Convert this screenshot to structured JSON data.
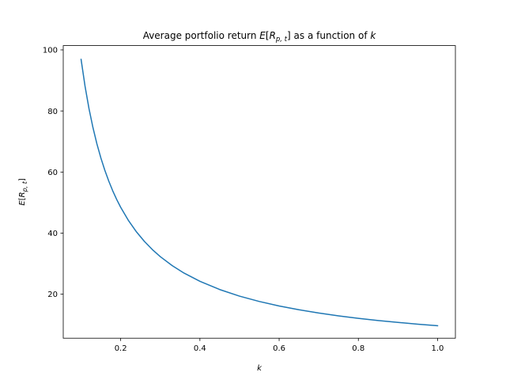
{
  "chart_data": {
    "type": "line",
    "title": {
      "prefix": "Average portfolio return ",
      "E": "E",
      "bracket_open": "[",
      "R": "R",
      "sub": "p, t",
      "bracket_close": "]",
      "middle": " as a function of ",
      "k": "k"
    },
    "xlabel": "k",
    "ylabel": {
      "E": "E",
      "bracket_open": "[",
      "R": "R",
      "sub": "p, t",
      "bracket_close": "]"
    },
    "xlim": [
      0.055,
      1.045
    ],
    "ylim": [
      5.6,
      101.4
    ],
    "xticks": [
      0.2,
      0.4,
      0.6,
      0.8,
      1.0
    ],
    "xtick_labels": [
      "0.2",
      "0.4",
      "0.6",
      "0.8",
      "1.0"
    ],
    "yticks": [
      20,
      40,
      60,
      80,
      100
    ],
    "ytick_labels": [
      "20",
      "40",
      "60",
      "80",
      "100"
    ],
    "grid": false,
    "series": [
      {
        "color": "#1f77b4",
        "x": [
          0.1,
          0.11,
          0.12,
          0.13,
          0.14,
          0.15,
          0.16,
          0.17,
          0.18,
          0.19,
          0.2,
          0.22,
          0.24,
          0.26,
          0.28,
          0.3,
          0.33,
          0.36,
          0.4,
          0.45,
          0.5,
          0.55,
          0.6,
          0.65,
          0.7,
          0.75,
          0.8,
          0.85,
          0.9,
          0.95,
          1.0
        ],
        "y": [
          96.9,
          88.1,
          80.75,
          74.54,
          69.21,
          64.6,
          60.56,
          57.0,
          53.83,
          51.0,
          48.45,
          44.05,
          40.38,
          37.27,
          34.61,
          32.3,
          29.36,
          26.92,
          24.23,
          21.53,
          19.38,
          17.62,
          16.15,
          14.91,
          13.84,
          12.92,
          12.11,
          11.4,
          10.77,
          10.2,
          9.69
        ]
      }
    ]
  }
}
